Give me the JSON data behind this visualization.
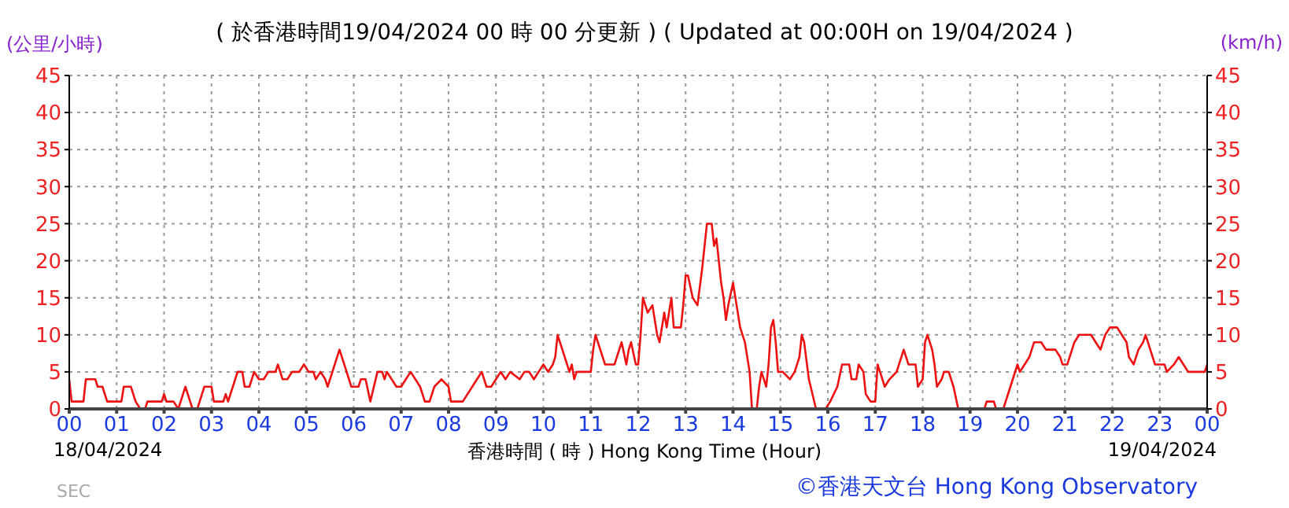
{
  "chart_data": {
    "type": "line",
    "title": "( 於香港時間19/04/2024 00 時 00 分更新 ) ( Updated at 00:00H on 19/04/2024 )",
    "xlabel": "香港時間 ( 時 ) Hong Kong Time (Hour)",
    "ylabel": "(公里/小時)",
    "y2label": "(km/h)",
    "annotations": [
      "18/04/2024",
      "19/04/2024",
      "©香港天文台 Hong Kong Observatory",
      "SEC"
    ],
    "x": [
      0,
      0.05,
      0.3,
      0.35,
      0.55,
      0.6,
      0.7,
      0.8,
      1.1,
      1.15,
      1.3,
      1.4,
      1.5,
      1.6,
      1.65,
      1.95,
      2.0,
      2.05,
      2.2,
      2.3,
      2.35,
      2.45,
      2.55,
      2.6,
      2.7,
      2.75,
      2.85,
      3.0,
      3.05,
      3.25,
      3.3,
      3.35,
      3.45,
      3.55,
      3.65,
      3.7,
      3.8,
      3.9,
      4.0,
      4.1,
      4.2,
      4.35,
      4.4,
      4.5,
      4.6,
      4.7,
      4.85,
      4.95,
      5.05,
      5.15,
      5.2,
      5.3,
      5.4,
      5.45,
      5.55,
      5.6,
      5.7,
      5.8,
      5.95,
      6.1,
      6.15,
      6.25,
      6.35,
      6.5,
      6.6,
      6.65,
      6.7,
      6.8,
      6.9,
      7.0,
      7.1,
      7.2,
      7.3,
      7.4,
      7.5,
      7.6,
      7.7,
      7.85,
      8.0,
      8.05,
      8.3,
      8.4,
      8.5,
      8.6,
      8.7,
      8.8,
      8.9,
      9.0,
      9.1,
      9.2,
      9.3,
      9.5,
      9.6,
      9.7,
      9.8,
      9.9,
      10.0,
      10.1,
      10.2,
      10.25,
      10.3,
      10.4,
      10.5,
      10.55,
      10.6,
      10.65,
      10.7,
      11.0,
      11.05,
      11.1,
      11.2,
      11.3,
      11.5,
      11.6,
      11.65,
      11.75,
      11.8,
      11.85,
      11.95,
      12.0,
      12.05,
      12.1,
      12.2,
      12.3,
      12.35,
      12.4,
      12.45,
      12.55,
      12.6,
      12.7,
      12.75,
      12.9,
      12.95,
      13.0,
      13.05,
      13.15,
      13.25,
      13.35,
      13.45,
      13.55,
      13.6,
      13.65,
      13.75,
      13.8,
      13.85,
      13.9,
      14.0,
      14.05,
      14.15,
      14.25,
      14.35,
      14.4,
      14.5,
      14.55,
      14.6,
      14.65,
      14.7,
      14.75,
      14.8,
      14.85,
      14.9,
      14.95,
      15.05,
      15.2,
      15.3,
      15.4,
      15.45,
      15.5,
      15.6,
      15.75,
      15.85,
      15.95,
      16.05,
      16.2,
      16.3,
      16.45,
      16.5,
      16.6,
      16.65,
      16.75,
      16.8,
      16.9,
      17.0,
      17.05,
      17.1,
      17.2,
      17.3,
      17.45,
      17.55,
      17.6,
      17.7,
      17.85,
      17.9,
      18.0,
      18.05,
      18.1,
      18.2,
      18.25,
      18.3,
      18.4,
      18.45,
      18.55,
      18.65,
      18.75,
      19.0,
      19.3,
      19.35,
      19.5,
      19.55,
      19.7,
      19.75,
      19.85,
      20.0,
      20.05,
      20.15,
      20.25,
      20.35,
      20.5,
      20.6,
      20.8,
      20.9,
      20.95,
      21.05,
      21.15,
      21.2,
      21.3,
      21.55,
      21.65,
      21.75,
      21.85,
      21.95,
      22.1,
      22.2,
      22.3,
      22.35,
      22.45,
      22.55,
      22.65,
      22.7,
      22.75,
      22.8,
      22.9,
      23.1,
      23.15,
      23.3,
      23.4,
      23.5,
      23.6,
      23.95,
      24.0
    ],
    "series": [
      {
        "color": "#ee1111",
        "values": [
          4,
          1,
          1,
          4,
          4,
          3,
          3,
          1,
          1,
          3,
          3,
          1,
          0,
          0,
          1,
          1,
          2,
          1,
          1,
          0,
          1,
          3,
          1,
          0,
          0,
          1,
          3,
          3,
          1,
          1,
          2,
          1,
          3,
          5,
          5,
          3,
          3,
          5,
          4,
          4,
          5,
          5,
          6,
          4,
          4,
          5,
          5,
          6,
          5,
          5,
          4,
          5,
          4,
          3,
          5,
          6,
          8,
          6,
          3,
          3,
          4,
          4,
          1,
          5,
          5,
          4,
          5,
          4,
          3,
          3,
          4,
          5,
          4,
          3,
          1,
          1,
          3,
          4,
          3,
          1,
          1,
          2,
          3,
          4,
          5,
          3,
          3,
          4,
          5,
          4,
          5,
          4,
          5,
          5,
          4,
          5,
          6,
          5,
          6,
          7,
          10,
          8,
          6,
          5,
          6,
          4,
          5,
          5,
          8,
          10,
          8,
          6,
          6,
          8,
          9,
          6,
          8,
          9,
          6,
          6,
          10,
          15,
          13,
          14,
          12,
          10,
          9,
          13,
          11,
          15,
          11,
          11,
          14,
          18,
          18,
          15,
          14,
          19,
          25,
          25,
          22,
          23,
          17,
          15,
          12,
          14,
          17,
          15,
          11,
          9,
          5,
          0,
          0,
          3,
          5,
          4,
          3,
          6,
          11,
          12,
          9,
          5,
          5,
          4,
          5,
          7,
          10,
          9,
          4,
          0,
          0,
          0,
          1,
          3,
          6,
          6,
          4,
          4,
          6,
          5,
          2,
          1,
          1,
          6,
          5,
          3,
          4,
          5,
          7,
          8,
          6,
          6,
          3,
          4,
          9,
          10,
          8,
          6,
          3,
          4,
          5,
          5,
          3,
          0,
          0,
          0,
          1,
          1,
          0,
          0,
          1,
          3,
          6,
          5,
          6,
          7,
          9,
          9,
          8,
          8,
          7,
          6,
          6,
          8,
          9,
          10,
          10,
          9,
          8,
          10,
          11,
          11,
          10,
          9,
          7,
          6,
          8,
          9,
          10,
          9,
          8,
          6,
          6,
          5,
          6,
          7,
          6,
          5,
          5,
          6
        ]
      }
    ],
    "xlim": [
      0,
      24
    ],
    "xticks": [
      {
        "value": 0,
        "label": "00"
      },
      {
        "value": 1,
        "label": "01"
      },
      {
        "value": 2,
        "label": "02"
      },
      {
        "value": 3,
        "label": "03"
      },
      {
        "value": 4,
        "label": "04"
      },
      {
        "value": 5,
        "label": "05"
      },
      {
        "value": 6,
        "label": "06"
      },
      {
        "value": 7,
        "label": "07"
      },
      {
        "value": 8,
        "label": "08"
      },
      {
        "value": 9,
        "label": "09"
      },
      {
        "value": 10,
        "label": "10"
      },
      {
        "value": 11,
        "label": "11"
      },
      {
        "value": 12,
        "label": "12"
      },
      {
        "value": 13,
        "label": "13"
      },
      {
        "value": 14,
        "label": "14"
      },
      {
        "value": 15,
        "label": "15"
      },
      {
        "value": 16,
        "label": "16"
      },
      {
        "value": 17,
        "label": "17"
      },
      {
        "value": 18,
        "label": "18"
      },
      {
        "value": 19,
        "label": "19"
      },
      {
        "value": 20,
        "label": "20"
      },
      {
        "value": 21,
        "label": "21"
      },
      {
        "value": 22,
        "label": "22"
      },
      {
        "value": 23,
        "label": "23"
      },
      {
        "value": 24,
        "label": "00"
      }
    ],
    "ylim": [
      0,
      45
    ],
    "yticks": [
      0,
      5,
      10,
      15,
      20,
      25,
      30,
      35,
      40,
      45
    ],
    "y2lim": [
      0,
      45
    ],
    "y2ticks": [
      0,
      5,
      10,
      15,
      20,
      25,
      30,
      35,
      40,
      45
    ],
    "grid": true,
    "marker": "none",
    "line_style": "solid"
  }
}
